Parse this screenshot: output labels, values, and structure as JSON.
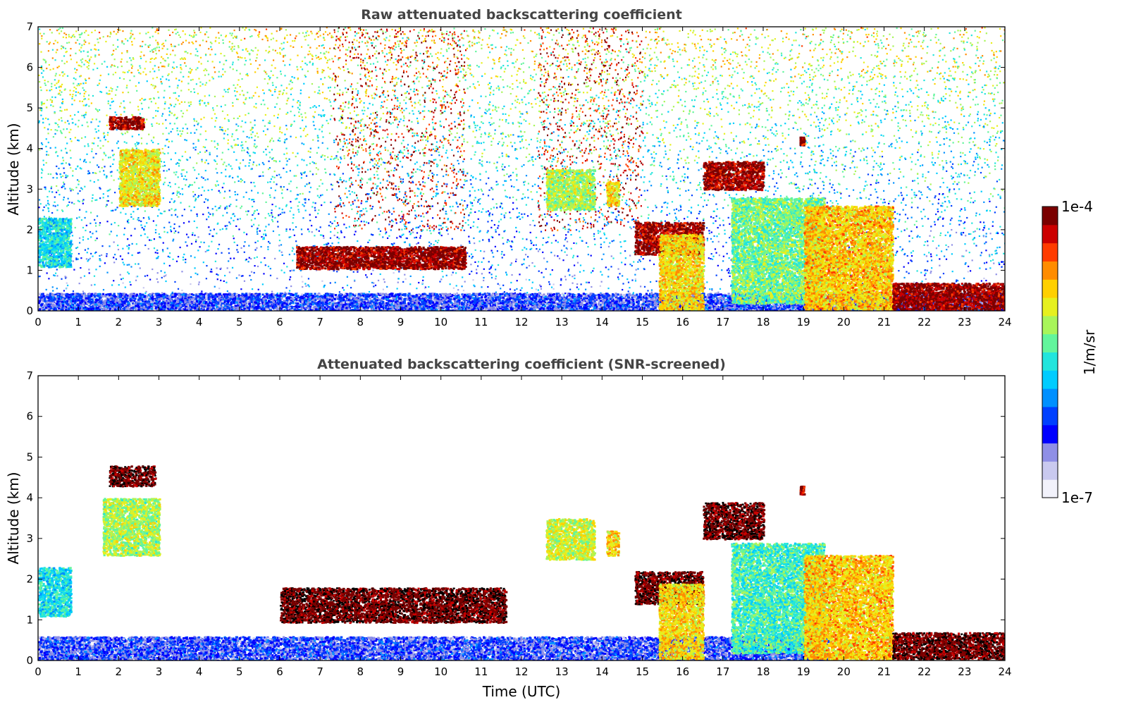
{
  "chart_data": [
    {
      "type": "heatmap",
      "title": "Raw attenuated backscattering coefficient",
      "xlabel": "",
      "ylabel": "Altitude (km)",
      "xlim": [
        0,
        24
      ],
      "ylim": [
        0,
        7
      ],
      "x_ticks": [
        "0",
        "1",
        "2",
        "3",
        "4",
        "5",
        "6",
        "7",
        "8",
        "9",
        "10",
        "11",
        "12",
        "13",
        "14",
        "15",
        "16",
        "17",
        "18",
        "19",
        "20",
        "21",
        "22",
        "23",
        "24"
      ],
      "y_ticks": [
        "0",
        "1",
        "2",
        "3",
        "4",
        "5",
        "6",
        "7"
      ],
      "noise": "high",
      "features": [
        {
          "kind": "aerosol_layer",
          "x": [
            0,
            24
          ],
          "y": [
            0,
            0.45
          ],
          "level": 0.22
        },
        {
          "kind": "aerosol_patch",
          "x": [
            0,
            0.8
          ],
          "y": [
            1.1,
            2.3
          ],
          "level": 0.45
        },
        {
          "kind": "cloud_layer",
          "x": [
            1.75,
            2.6
          ],
          "y": [
            4.5,
            4.8
          ],
          "level": 0.95
        },
        {
          "kind": "cloud",
          "x": [
            2.0,
            3.0
          ],
          "y": [
            2.6,
            4.0
          ],
          "level": 0.68
        },
        {
          "kind": "cloud_layer",
          "x": [
            6.4,
            10.6
          ],
          "y": [
            1.05,
            1.6
          ],
          "level": 0.96
        },
        {
          "kind": "cloud",
          "x": [
            12.6,
            13.8
          ],
          "y": [
            2.5,
            3.5
          ],
          "level": 0.6
        },
        {
          "kind": "cloud",
          "x": [
            14.1,
            14.4
          ],
          "y": [
            2.6,
            3.2
          ],
          "level": 0.7
        },
        {
          "kind": "cloud_layer",
          "x": [
            14.8,
            16.5
          ],
          "y": [
            1.4,
            2.2
          ],
          "level": 0.95
        },
        {
          "kind": "cloud",
          "x": [
            15.4,
            16.5
          ],
          "y": [
            0.05,
            1.9
          ],
          "level": 0.7
        },
        {
          "kind": "cloud_layer",
          "x": [
            16.5,
            18.0
          ],
          "y": [
            3.0,
            3.7
          ],
          "level": 0.95
        },
        {
          "kind": "cloud",
          "x": [
            17.2,
            19.5
          ],
          "y": [
            0.2,
            2.8
          ],
          "level": 0.55
        },
        {
          "kind": "cloud_layer",
          "x": [
            18.9,
            19.0
          ],
          "y": [
            4.1,
            4.3
          ],
          "level": 0.95
        },
        {
          "kind": "cloud",
          "x": [
            19.0,
            21.2
          ],
          "y": [
            0.05,
            2.6
          ],
          "level": 0.72
        },
        {
          "kind": "cloud_layer",
          "x": [
            21.2,
            24.0
          ],
          "y": [
            0.05,
            0.7
          ],
          "level": 0.97
        }
      ]
    },
    {
      "type": "heatmap",
      "title": "Attenuated backscattering coefficient (SNR-screened)",
      "xlabel": "Time (UTC)",
      "ylabel": "Altitude (km)",
      "xlim": [
        0,
        24
      ],
      "ylim": [
        0,
        7
      ],
      "x_ticks": [
        "0",
        "1",
        "2",
        "3",
        "4",
        "5",
        "6",
        "7",
        "8",
        "9",
        "10",
        "11",
        "12",
        "13",
        "14",
        "15",
        "16",
        "17",
        "18",
        "19",
        "20",
        "21",
        "22",
        "23",
        "24"
      ],
      "y_ticks": [
        "0",
        "1",
        "2",
        "3",
        "4",
        "5",
        "6",
        "7"
      ],
      "noise": "screened",
      "features": [
        {
          "kind": "aerosol_layer",
          "x": [
            0,
            19.6
          ],
          "y": [
            0,
            0.6
          ],
          "level": 0.22
        },
        {
          "kind": "aerosol_patch",
          "x": [
            0,
            0.8
          ],
          "y": [
            1.1,
            2.3
          ],
          "level": 0.45
        },
        {
          "kind": "cloud_layer",
          "x": [
            1.75,
            2.9
          ],
          "y": [
            4.3,
            4.8
          ],
          "level": 1.0
        },
        {
          "kind": "cloud",
          "x": [
            1.6,
            3.0
          ],
          "y": [
            2.6,
            4.0
          ],
          "level": 0.6
        },
        {
          "kind": "cloud_layer",
          "x": [
            6.0,
            11.6
          ],
          "y": [
            0.95,
            1.8
          ],
          "level": 1.0
        },
        {
          "kind": "cloud",
          "x": [
            12.6,
            13.8
          ],
          "y": [
            2.5,
            3.5
          ],
          "level": 0.63
        },
        {
          "kind": "cloud",
          "x": [
            14.1,
            14.4
          ],
          "y": [
            2.6,
            3.2
          ],
          "level": 0.7
        },
        {
          "kind": "cloud_layer",
          "x": [
            14.8,
            16.5
          ],
          "y": [
            1.4,
            2.2
          ],
          "level": 1.0
        },
        {
          "kind": "cloud",
          "x": [
            15.4,
            16.5
          ],
          "y": [
            0.05,
            1.9
          ],
          "level": 0.7
        },
        {
          "kind": "cloud_layer",
          "x": [
            16.5,
            18.0
          ],
          "y": [
            3.0,
            3.9
          ],
          "level": 1.0
        },
        {
          "kind": "cloud",
          "x": [
            17.2,
            19.5
          ],
          "y": [
            0.2,
            2.9
          ],
          "level": 0.5
        },
        {
          "kind": "cloud_layer",
          "x": [
            18.9,
            19.0
          ],
          "y": [
            4.1,
            4.3
          ],
          "level": 0.95
        },
        {
          "kind": "cloud",
          "x": [
            19.0,
            21.2
          ],
          "y": [
            0.05,
            2.6
          ],
          "level": 0.72
        },
        {
          "kind": "cloud_layer",
          "x": [
            21.2,
            24.0
          ],
          "y": [
            0.05,
            0.7
          ],
          "level": 1.0
        }
      ]
    }
  ],
  "colorbar": {
    "label": "1/m/sr",
    "max_label": "1e-4",
    "min_label": "1e-7",
    "colors": [
      "#f2f2fb",
      "#c9c9ef",
      "#8f8fe6",
      "#0000ff",
      "#0040ff",
      "#0090ff",
      "#00ccff",
      "#22e5dd",
      "#62f59c",
      "#a8f55a",
      "#e6f01e",
      "#ffd000",
      "#ff8c00",
      "#ff3c00",
      "#cc0000",
      "#7a0000"
    ]
  }
}
